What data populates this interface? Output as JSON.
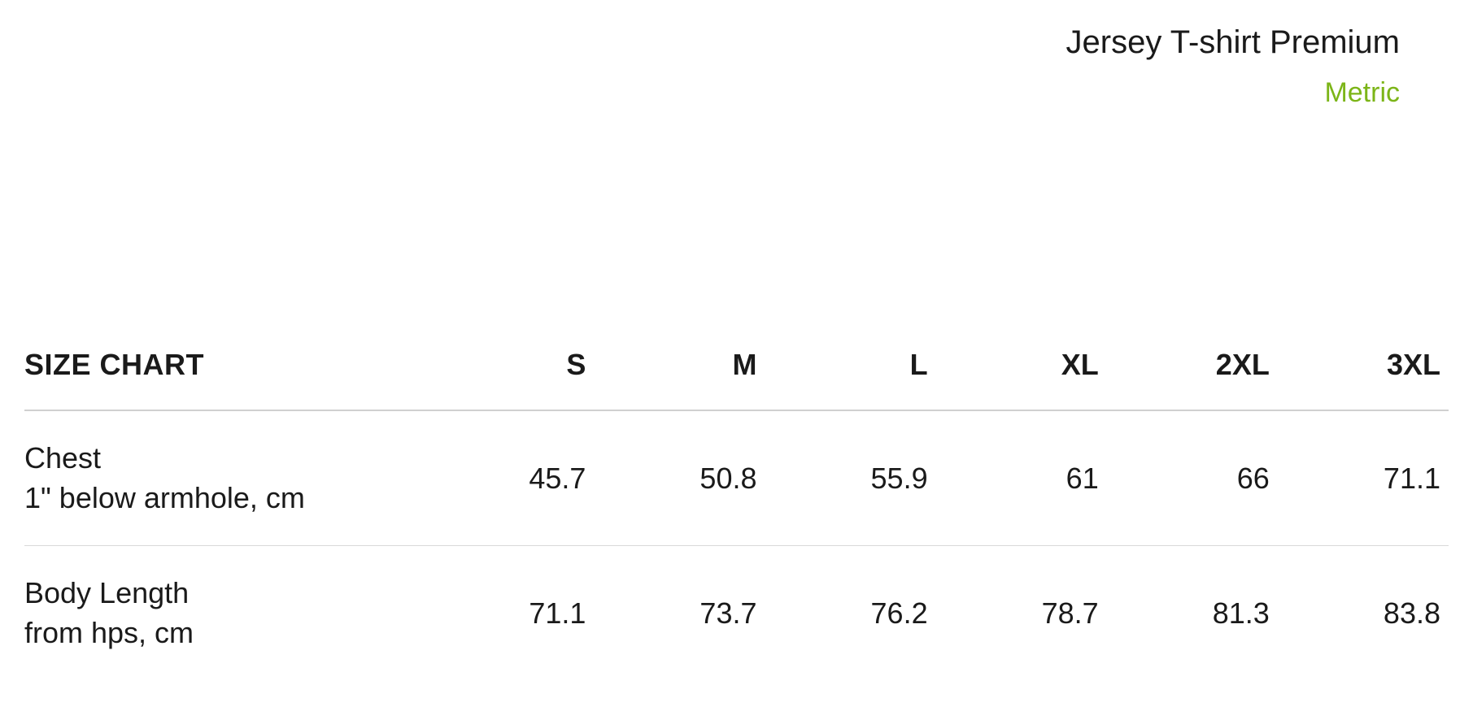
{
  "header": {
    "product_title": "Jersey T-shirt Premium",
    "unit_label": "Metric",
    "accent_color": "#7cb518"
  },
  "table": {
    "title": "SIZE CHART",
    "columns": [
      "S",
      "M",
      "L",
      "XL",
      "2XL",
      "3XL"
    ],
    "rows": [
      {
        "label_main": "Chest",
        "label_sub": "1\" below armhole, cm",
        "values": [
          "45.7",
          "50.8",
          "55.9",
          "61",
          "66",
          "71.1"
        ]
      },
      {
        "label_main": "Body Length",
        "label_sub": "from hps, cm",
        "values": [
          "71.1",
          "73.7",
          "76.2",
          "78.7",
          "81.3",
          "83.8"
        ]
      }
    ],
    "border_color": "#d0d0d0",
    "text_color": "#1a1a1a",
    "background_color": "#ffffff",
    "header_fontsize": 36,
    "cell_fontsize": 36
  }
}
